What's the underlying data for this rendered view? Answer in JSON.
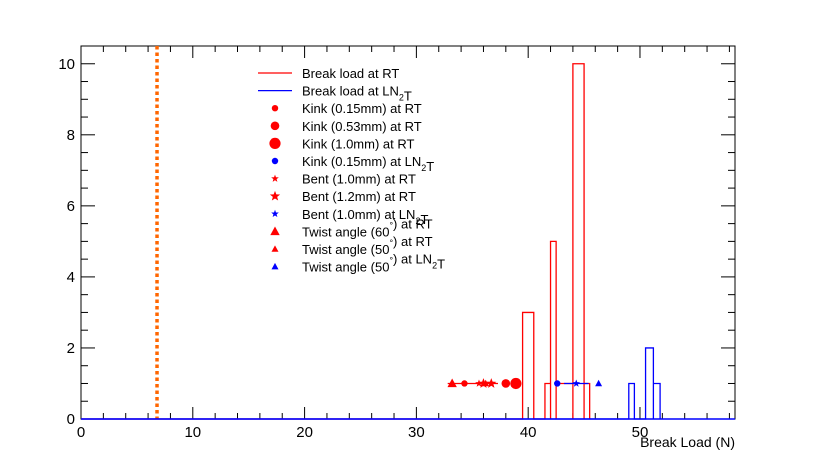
{
  "chart_data": {
    "type": "histogram",
    "xlabel": "Break Load (N)",
    "ylabel": "",
    "xlim": [
      0,
      58.5
    ],
    "ylim": [
      0,
      10.5
    ],
    "x_ticks": [
      0,
      10,
      20,
      30,
      40,
      50
    ],
    "y_ticks": [
      0,
      2,
      4,
      6,
      8,
      10
    ],
    "grid": false,
    "legend_position": "upper-middle",
    "colors": {
      "rt": "#ff0000",
      "ln2t": "#0000ff",
      "threshold": "#ff6600"
    },
    "threshold_line": {
      "x": 6.8,
      "style": "dotted",
      "color": "#ff6600"
    },
    "histograms": [
      {
        "name": "Break load at RT",
        "color": "#ff0000",
        "bins": [
          {
            "x0": 39.5,
            "x1": 40.5,
            "y": 3
          },
          {
            "x0": 40.5,
            "x1": 41.5,
            "y": 0
          },
          {
            "x0": 41.5,
            "x1": 42.0,
            "y": 1
          },
          {
            "x0": 42.0,
            "x1": 42.5,
            "y": 5
          },
          {
            "x0": 42.5,
            "x1": 44.0,
            "y": 1
          },
          {
            "x0": 44.0,
            "x1": 45.0,
            "y": 10
          },
          {
            "x0": 45.0,
            "x1": 45.5,
            "y": 1
          }
        ]
      },
      {
        "name": "Break load at LN2T",
        "color": "#0000ff",
        "bins": [
          {
            "x0": 49.0,
            "x1": 49.5,
            "y": 1
          },
          {
            "x0": 49.5,
            "x1": 50.5,
            "y": 0
          },
          {
            "x0": 50.5,
            "x1": 51.2,
            "y": 2
          },
          {
            "x0": 51.2,
            "x1": 51.8,
            "y": 1
          }
        ]
      }
    ],
    "markers": [
      {
        "name": "Kink (0.15mm) at RT",
        "shape": "circle",
        "size": "small",
        "color": "#ff0000",
        "points": [
          [
            34.3,
            1
          ]
        ]
      },
      {
        "name": "Kink (0.53mm) at RT",
        "shape": "circle",
        "size": "medium",
        "color": "#ff0000",
        "points": [
          [
            38.0,
            1
          ]
        ]
      },
      {
        "name": "Kink (1.0mm) at RT",
        "shape": "circle",
        "size": "large",
        "color": "#ff0000",
        "points": [
          [
            38.9,
            1
          ]
        ]
      },
      {
        "name": "Kink (0.15mm) at LN2T",
        "shape": "circle",
        "size": "small",
        "color": "#0000ff",
        "points": [
          [
            42.6,
            1
          ]
        ]
      },
      {
        "name": "Bent (1.0mm) at RT",
        "shape": "star",
        "size": "small",
        "color": "#ff0000",
        "points": [
          [
            35.6,
            1
          ]
        ]
      },
      {
        "name": "Bent (1.2mm) at RT",
        "shape": "star",
        "size": "medium",
        "color": "#ff0000",
        "points": [
          [
            36.0,
            1
          ],
          [
            36.7,
            1
          ]
        ]
      },
      {
        "name": "Bent (1.0mm) at LN2T",
        "shape": "star",
        "size": "small",
        "color": "#0000ff",
        "points": [
          [
            44.3,
            1
          ]
        ]
      },
      {
        "name": "Twist angle (60°) at RT",
        "shape": "triangle",
        "size": "medium",
        "color": "#ff0000",
        "points": [
          [
            33.2,
            1
          ]
        ]
      },
      {
        "name": "Twist angle (50°) at RT",
        "shape": "triangle",
        "size": "small",
        "color": "#ff0000",
        "points": [
          [
            36.2,
            1
          ]
        ]
      },
      {
        "name": "Twist angle (50°) at LN2T",
        "shape": "triangle",
        "size": "small",
        "color": "#0000ff",
        "points": [
          [
            46.3,
            1
          ]
        ]
      }
    ],
    "error_bars": [
      {
        "color": "#ff0000",
        "y": 1,
        "x0": 32.8,
        "x1": 37.3
      },
      {
        "color": "#0000ff",
        "y": 1,
        "x0": 43.2,
        "x1": 45.4
      }
    ],
    "legend": [
      {
        "type": "line",
        "color": "#ff0000",
        "parts": [
          {
            "t": "Break load at RT"
          }
        ]
      },
      {
        "type": "line",
        "color": "#0000ff",
        "parts": [
          {
            "t": "Break load at LN"
          },
          {
            "t": "2",
            "sub": true
          },
          {
            "t": "T"
          }
        ]
      },
      {
        "type": "circle",
        "size": "small",
        "color": "#ff0000",
        "parts": [
          {
            "t": "Kink (0.15mm) at RT"
          }
        ]
      },
      {
        "type": "circle",
        "size": "medium",
        "color": "#ff0000",
        "parts": [
          {
            "t": "Kink (0.53mm) at RT"
          }
        ]
      },
      {
        "type": "circle",
        "size": "large",
        "color": "#ff0000",
        "parts": [
          {
            "t": "Kink (1.0mm) at RT"
          }
        ]
      },
      {
        "type": "circle",
        "size": "small",
        "color": "#0000ff",
        "parts": [
          {
            "t": "Kink (0.15mm) at LN"
          },
          {
            "t": "2",
            "sub": true
          },
          {
            "t": "T"
          }
        ]
      },
      {
        "type": "star",
        "size": "small",
        "color": "#ff0000",
        "parts": [
          {
            "t": "Bent (1.0mm) at RT"
          }
        ]
      },
      {
        "type": "star",
        "size": "medium",
        "color": "#ff0000",
        "parts": [
          {
            "t": "Bent (1.2mm) at RT"
          }
        ]
      },
      {
        "type": "star",
        "size": "small",
        "color": "#0000ff",
        "parts": [
          {
            "t": "Bent (1.0mm) at LN"
          },
          {
            "t": "2",
            "sub": true
          },
          {
            "t": "T"
          }
        ]
      },
      {
        "type": "triangle",
        "size": "medium",
        "color": "#ff0000",
        "parts": [
          {
            "t": "Twist angle (60"
          },
          {
            "t": "°",
            "sup": true
          },
          {
            "t": ") at RT"
          }
        ]
      },
      {
        "type": "triangle",
        "size": "small",
        "color": "#ff0000",
        "parts": [
          {
            "t": "Twist angle (50"
          },
          {
            "t": "°",
            "sup": true
          },
          {
            "t": ") at RT"
          }
        ]
      },
      {
        "type": "triangle",
        "size": "small",
        "color": "#0000ff",
        "parts": [
          {
            "t": "Twist angle (50"
          },
          {
            "t": "°",
            "sup": true
          },
          {
            "t": ") at LN"
          },
          {
            "t": "2",
            "sub": true
          },
          {
            "t": "T"
          }
        ]
      }
    ]
  }
}
